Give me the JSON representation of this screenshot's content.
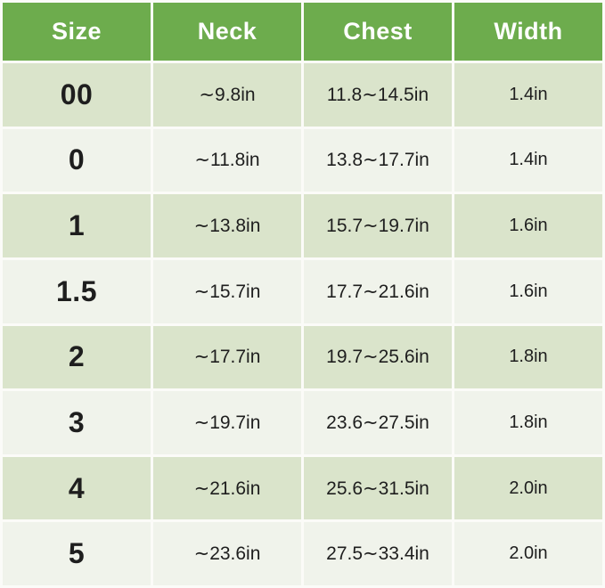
{
  "title": "Dog apparel size chart (inches)",
  "colors": {
    "header_bg": "#6dac4d",
    "header_text": "#ffffff",
    "row_dark_bg": "#dae4cb",
    "row_light_bg": "#f0f3eb",
    "divider": "#fbfbf8",
    "body_text": "#1e1e1e"
  },
  "chart_data": {
    "type": "table",
    "title": "Size chart",
    "columns": [
      "Size",
      "Neck",
      "Chest",
      "Width"
    ],
    "rows": [
      [
        "00",
        "∼9.8in",
        "11.8∼14.5in",
        "1.4in"
      ],
      [
        "0",
        "∼11.8in",
        "13.8∼17.7in",
        "1.4in"
      ],
      [
        "1",
        "∼13.8in",
        "15.7∼19.7in",
        "1.6in"
      ],
      [
        "1.5",
        "∼15.7in",
        "17.7∼21.6in",
        "1.6in"
      ],
      [
        "2",
        "∼17.7in",
        "19.7∼25.6in",
        "1.8in"
      ],
      [
        "3",
        "∼19.7in",
        "23.6∼27.5in",
        "1.8in"
      ],
      [
        "4",
        "∼21.6in",
        "25.6∼31.5in",
        "2.0in"
      ],
      [
        "5",
        "∼23.6in",
        "27.5∼33.4in",
        "2.0in"
      ]
    ],
    "layout": {
      "column_widths_pct": [
        25,
        25,
        25,
        25
      ],
      "header_row": true,
      "alternating_rows": "dark-first",
      "grid": "white 3px gaps"
    }
  }
}
